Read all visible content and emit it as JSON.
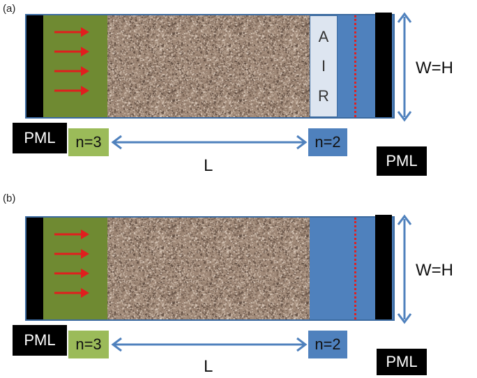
{
  "panels": [
    {
      "label": "(a)",
      "air_letters": [
        "A",
        "I",
        "R"
      ],
      "width_label": "W=H",
      "pml_left": "PML",
      "pml_right": "PML",
      "n_left": "n=3",
      "n_right": "n=2",
      "length_label": "L"
    },
    {
      "label": "(b)",
      "width_label": "W=H",
      "pml_left": "PML",
      "pml_right": "PML",
      "n_left": "n=3",
      "n_right": "n=2",
      "length_label": "L"
    }
  ],
  "colors": {
    "waveguide": "#4f81bd",
    "source_region": "#6f8a32",
    "n3_box": "#9bbb59",
    "air": "#dde5f0",
    "pml": "#000000",
    "arrows": "#e01e1e",
    "dimension_arrows": "#4f81bd"
  },
  "icons": [
    "propagation-arrow-icon",
    "double-headed-arrow-icon"
  ]
}
